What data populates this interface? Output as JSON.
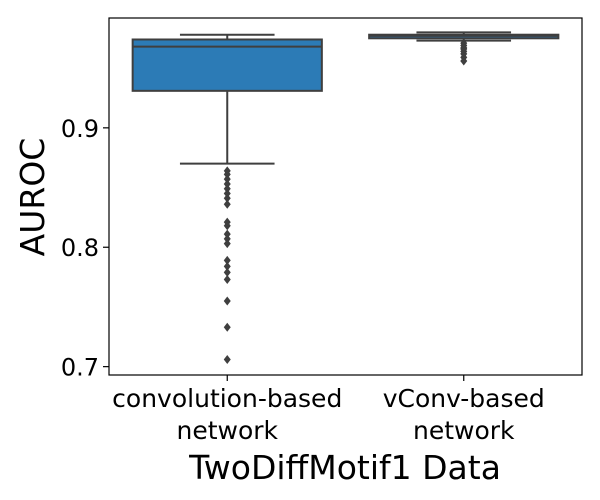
{
  "chart_data": {
    "type": "box",
    "title": "",
    "xlabel": "TwoDiffMotif1 Data",
    "ylabel": "AUROC",
    "ylim": [
      0.693,
      0.992
    ],
    "yticks": [
      0.7,
      0.8,
      0.9
    ],
    "ytick_labels": [
      "0.7",
      "0.8",
      "0.9"
    ],
    "grid": false,
    "legend": "none",
    "categories": [
      {
        "line1": "convolution-based",
        "line2": "network"
      },
      {
        "line1": "vConv-based",
        "line2": "network"
      }
    ],
    "boxes": [
      {
        "color": "#2c7bb6",
        "whisker_low": 0.87,
        "q1": 0.931,
        "median": 0.968,
        "q3": 0.974,
        "whisker_high": 0.978,
        "outliers": [
          0.864,
          0.861,
          0.857,
          0.853,
          0.849,
          0.845,
          0.841,
          0.836,
          0.821,
          0.818,
          0.811,
          0.807,
          0.803,
          0.789,
          0.784,
          0.779,
          0.773,
          0.755,
          0.733,
          0.706
        ]
      },
      {
        "color": "#2c7bb6",
        "whisker_low": 0.973,
        "q1": 0.975,
        "median": 0.977,
        "q3": 0.978,
        "whisker_high": 0.98,
        "outliers": [
          0.971,
          0.969,
          0.967,
          0.966,
          0.964,
          0.962,
          0.959,
          0.956
        ]
      }
    ]
  }
}
